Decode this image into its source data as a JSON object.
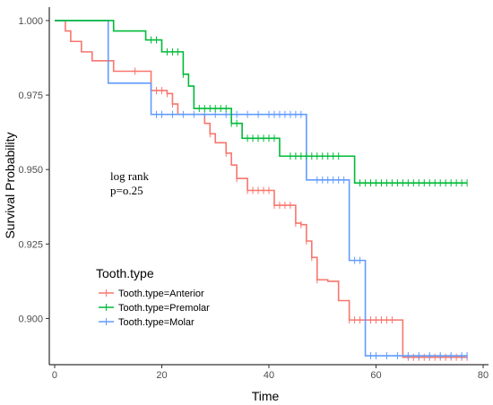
{
  "chart_data": {
    "type": "line",
    "subtype": "kaplan-meier step",
    "xlabel": "Time",
    "ylabel": "Survival Probability",
    "xlim": [
      -1,
      81
    ],
    "ylim": [
      0.8845,
      1.0045
    ],
    "x_ticks": [
      0,
      20,
      40,
      60,
      80
    ],
    "y_ticks": [
      0.9,
      0.925,
      0.95,
      0.975,
      1.0
    ],
    "y_tick_labels": [
      "0.900",
      "0.925",
      "0.950",
      "0.975",
      "1.000"
    ],
    "grid": false,
    "annotation": [
      "log rank",
      "p=o.25"
    ],
    "legend": {
      "title": "Tooth.type",
      "position": "bottom-left",
      "entries": [
        "Tooth.type=Anterior",
        "Tooth.type=Premolar",
        "Tooth.type=Molar"
      ]
    },
    "series": [
      {
        "name": "Tooth.type=Anterior",
        "color": "#f8766d",
        "steps": [
          [
            0,
            1.0
          ],
          [
            1,
            1.0
          ],
          [
            2,
            0.9965
          ],
          [
            3,
            0.993
          ],
          [
            5,
            0.9895
          ],
          [
            7,
            0.9865
          ],
          [
            11,
            0.983
          ],
          [
            18,
            0.9765
          ],
          [
            21,
            0.9755
          ],
          [
            22,
            0.972
          ],
          [
            23,
            0.9685
          ],
          [
            27,
            0.9685
          ],
          [
            28,
            0.9655
          ],
          [
            29,
            0.962
          ],
          [
            30,
            0.959
          ],
          [
            32,
            0.9555
          ],
          [
            33,
            0.9515
          ],
          [
            34,
            0.947
          ],
          [
            36,
            0.943
          ],
          [
            41,
            0.938
          ],
          [
            45,
            0.932
          ],
          [
            46,
            0.9315
          ],
          [
            47,
            0.926
          ],
          [
            48,
            0.9205
          ],
          [
            49,
            0.913
          ],
          [
            51,
            0.9125
          ],
          [
            53,
            0.906
          ],
          [
            55,
            0.8995
          ],
          [
            65,
            0.887
          ],
          [
            77,
            0.887
          ]
        ],
        "censor_x": [
          15,
          19,
          20,
          21,
          22,
          29,
          32,
          34,
          36,
          37,
          38,
          39,
          40,
          41,
          42,
          43,
          44,
          45,
          46,
          47,
          48,
          49,
          55,
          56,
          57,
          58,
          59,
          60,
          61,
          62,
          63,
          66,
          67,
          68,
          69,
          70,
          71,
          72,
          73,
          74,
          75,
          76,
          77
        ]
      },
      {
        "name": "Tooth.type=Premolar",
        "color": "#00ba38",
        "steps": [
          [
            0,
            1.0
          ],
          [
            1,
            1.0
          ],
          [
            11,
            0.9965
          ],
          [
            17,
            0.9935
          ],
          [
            20,
            0.9895
          ],
          [
            24,
            0.982
          ],
          [
            25,
            0.978
          ],
          [
            26,
            0.9705
          ],
          [
            33,
            0.9655
          ],
          [
            35,
            0.9605
          ],
          [
            42,
            0.9545
          ],
          [
            56,
            0.9455
          ],
          [
            77,
            0.9455
          ]
        ],
        "censor_x": [
          18,
          19,
          21,
          22,
          23,
          24,
          27,
          28,
          29,
          30,
          31,
          32,
          33,
          34,
          36,
          37,
          38,
          39,
          40,
          41,
          44,
          45,
          46,
          47,
          48,
          49,
          50,
          51,
          52,
          53,
          57,
          58,
          59,
          60,
          61,
          62,
          63,
          64,
          65,
          66,
          67,
          68,
          69,
          70,
          71,
          72,
          73,
          74,
          75,
          76,
          77
        ]
      },
      {
        "name": "Tooth.type=Molar",
        "color": "#619cff",
        "steps": [
          [
            0,
            1.0
          ],
          [
            1,
            1.0
          ],
          [
            10,
            0.979
          ],
          [
            18,
            0.9685
          ],
          [
            47,
            0.9465
          ],
          [
            55,
            0.9195
          ],
          [
            58,
            0.8875
          ],
          [
            77,
            0.8875
          ]
        ],
        "censor_x": [
          19,
          20,
          22,
          24,
          26,
          28,
          30,
          32,
          34,
          36,
          38,
          40,
          41,
          42,
          43,
          44,
          45,
          46,
          49,
          50,
          51,
          52,
          53,
          54,
          56,
          57,
          59,
          60,
          62,
          64,
          66,
          68,
          70,
          72,
          74,
          76,
          77
        ]
      }
    ]
  }
}
